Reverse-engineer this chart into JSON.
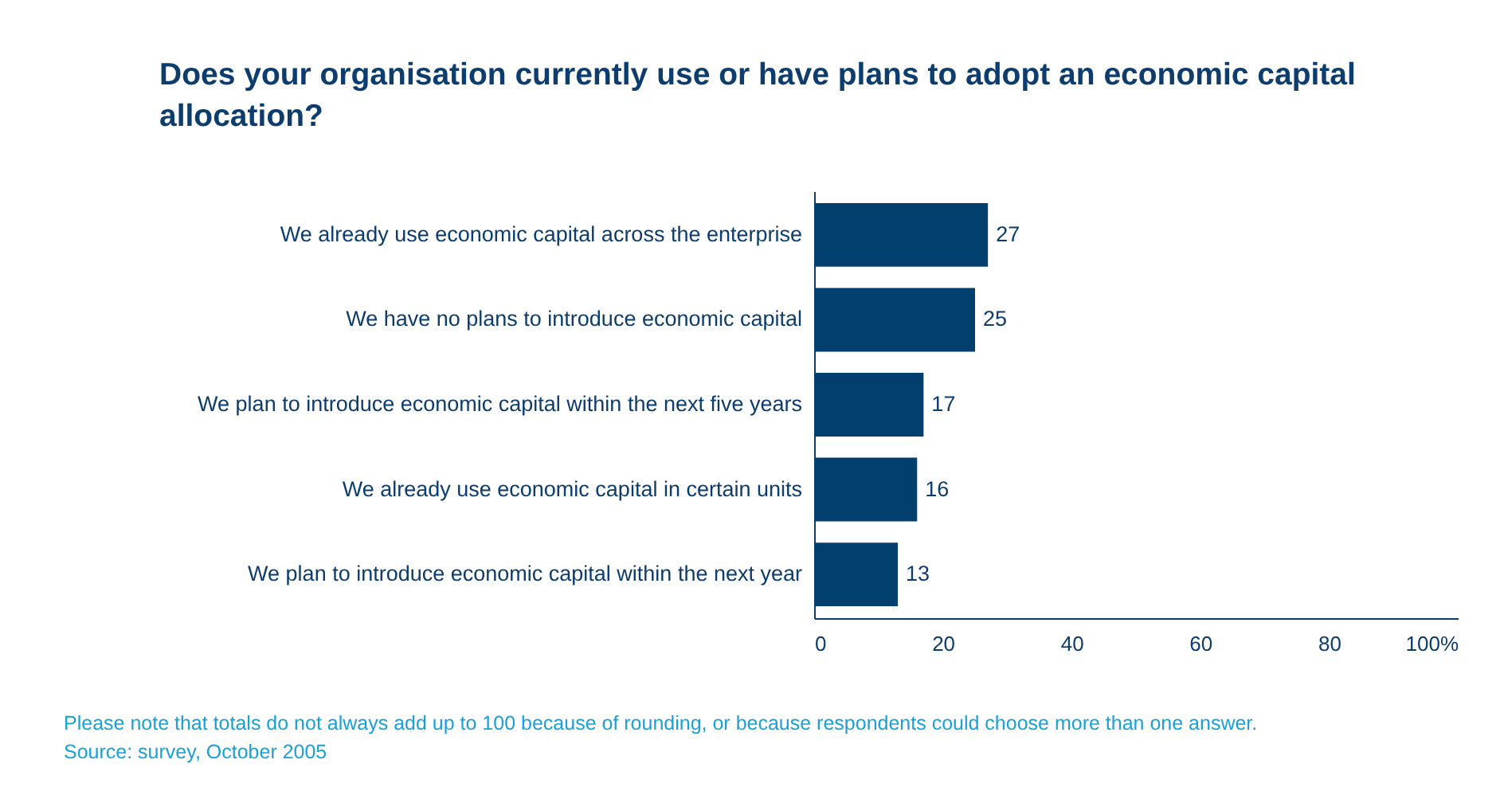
{
  "chart_data": {
    "type": "bar",
    "orientation": "horizontal",
    "title": "Does your organisation currently use or have plans to adopt an economic capital allocation?",
    "categories": [
      "We already use economic capital across the enterprise",
      "We have no plans to introduce economic capital",
      "We plan to introduce economic capital within the next five years",
      "We already use economic capital in certain units",
      "We plan to introduce economic capital within the next year"
    ],
    "values": [
      27,
      25,
      17,
      16,
      13
    ],
    "color": "#003f6e",
    "xlim": [
      0,
      100
    ],
    "xticks": [
      0,
      20,
      40,
      60,
      80,
      {
        "value": 100,
        "label": "100%"
      }
    ],
    "data_labels": true,
    "annotations": [
      "Please note that totals do not always add up to 100 because of rounding, or because respondents could choose more than one answer.",
      "Source: survey, October 2005"
    ]
  }
}
